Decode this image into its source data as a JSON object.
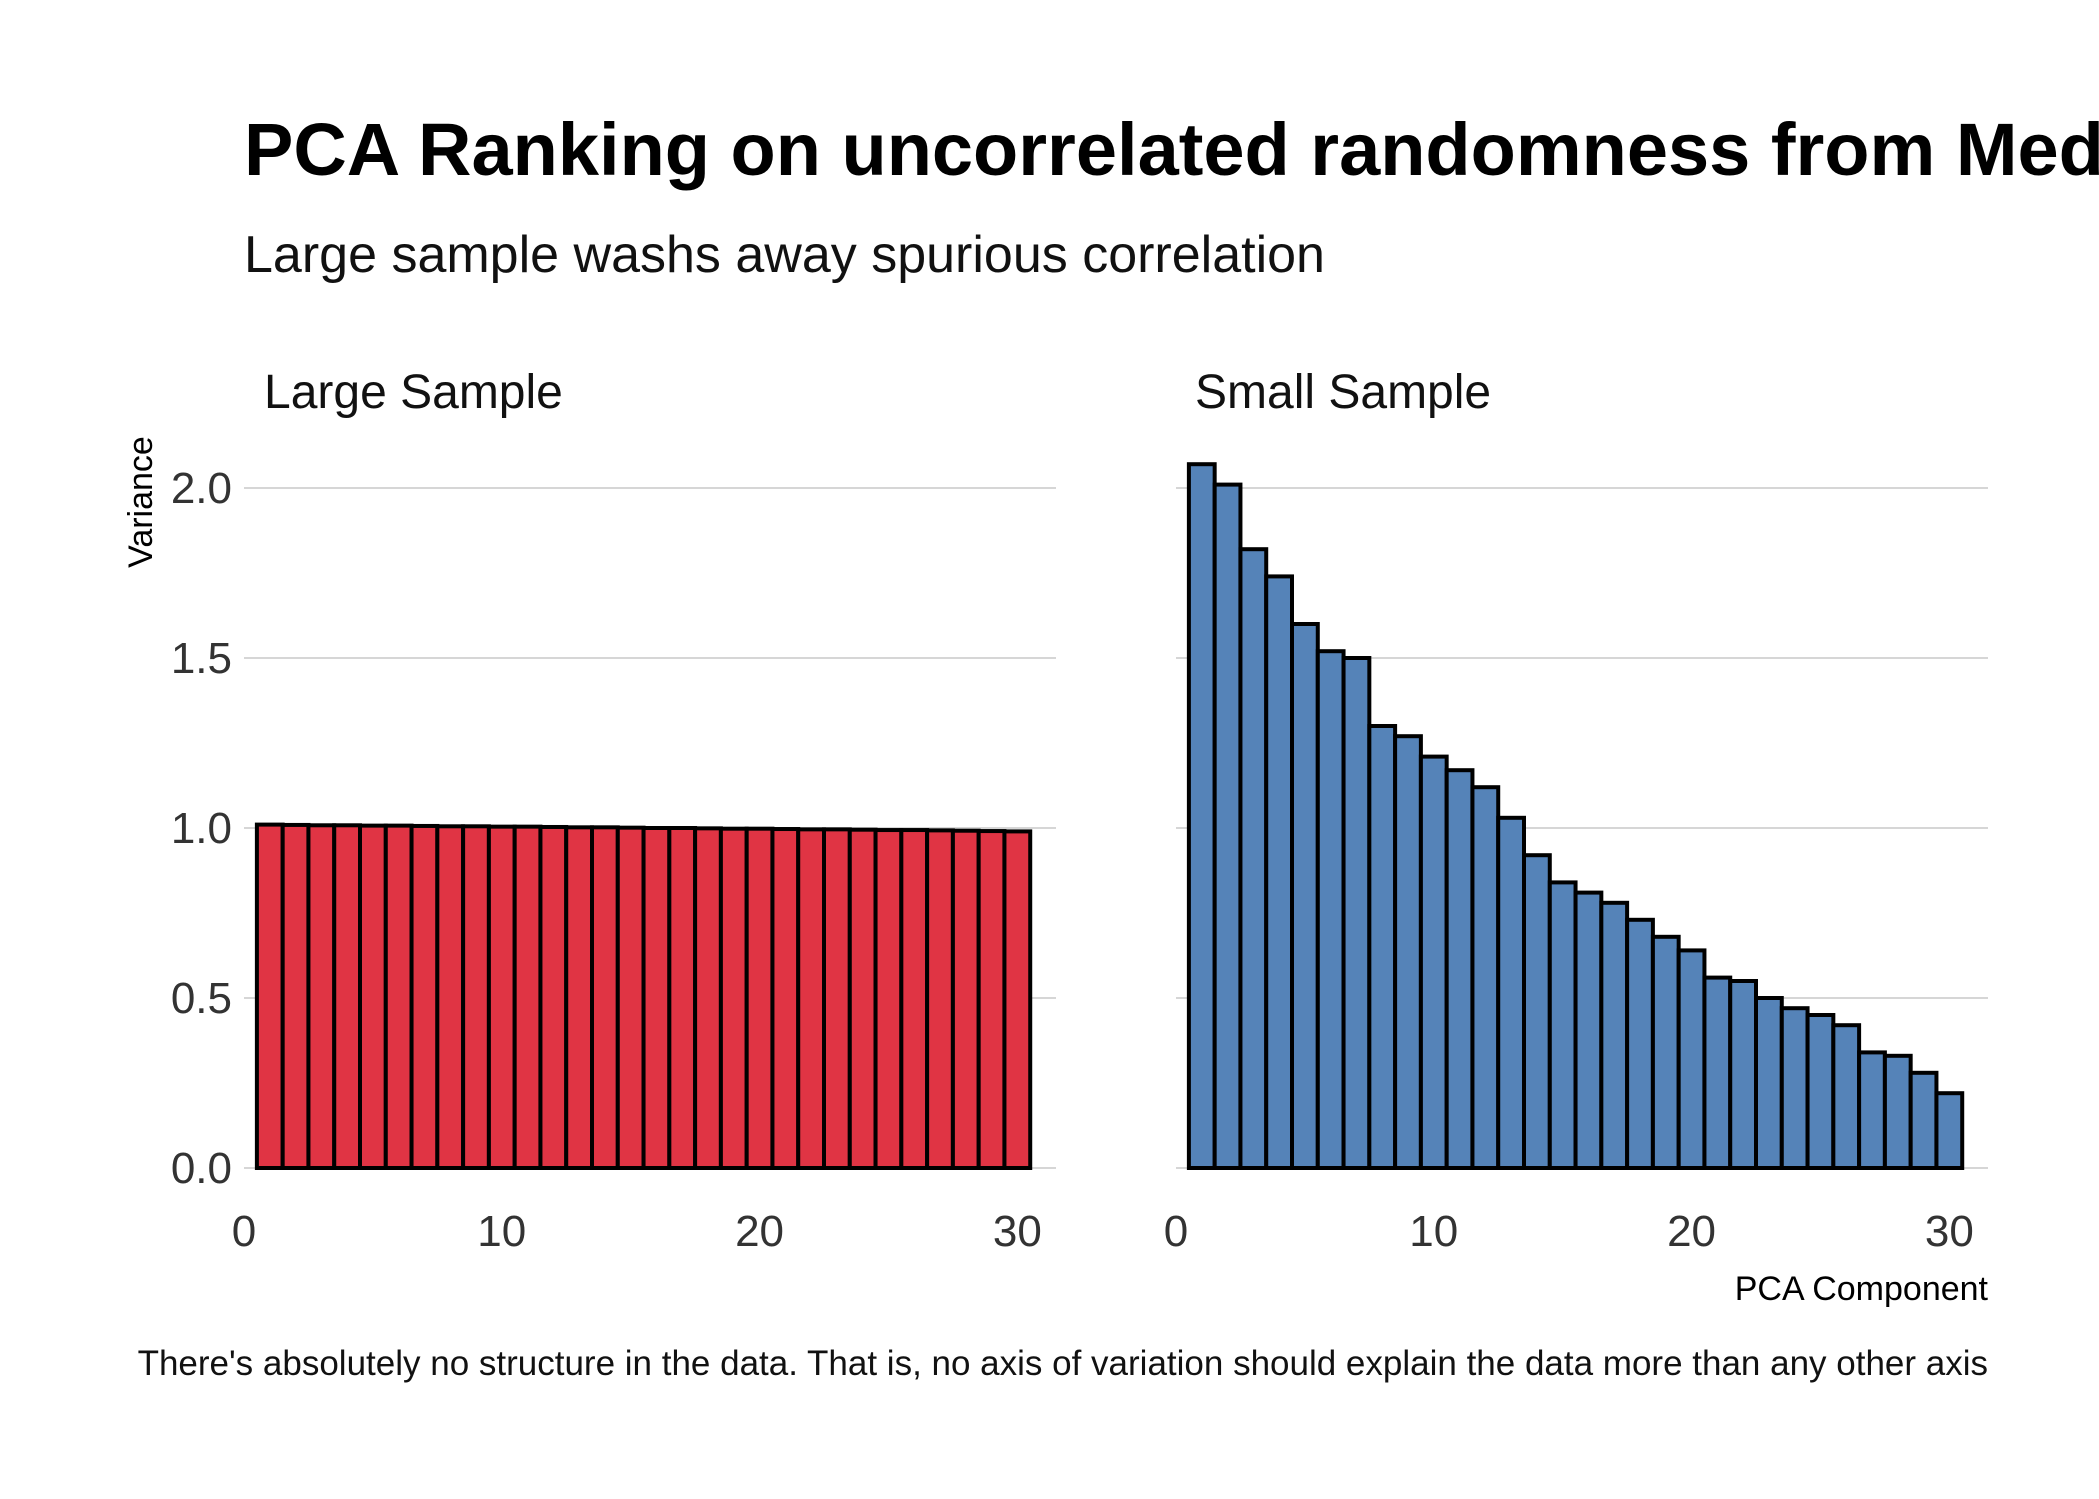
{
  "chart_data": {
    "type": "bar",
    "title": "PCA Ranking on uncorrelated randomness from Mediocristan",
    "subtitle": "Large sample washs away spurious correlation",
    "caption": "There's absolutely no structure in the data. That is, no axis of variation should explain the data more than any other axis",
    "xlabel": "PCA Component",
    "ylabel": "Variance",
    "ylim": [
      0,
      2.2
    ],
    "xlim": [
      0,
      31.5
    ],
    "y_ticks": [
      "0.0",
      "0.5",
      "1.0",
      "1.5",
      "2.0"
    ],
    "y_tick_values": [
      0,
      0.5,
      1.0,
      1.5,
      2.0
    ],
    "x_ticks": [
      "0",
      "10",
      "20",
      "30"
    ],
    "x_tick_values": [
      0,
      10,
      20,
      30
    ],
    "grid": "horizontal",
    "panels": [
      {
        "name": "Large Sample",
        "color": "#e03444",
        "x": [
          1,
          2,
          3,
          4,
          5,
          6,
          7,
          8,
          9,
          10,
          11,
          12,
          13,
          14,
          15,
          16,
          17,
          18,
          19,
          20,
          21,
          22,
          23,
          24,
          25,
          26,
          27,
          28,
          29,
          30
        ],
        "values": [
          1.01,
          1.009,
          1.008,
          1.008,
          1.007,
          1.007,
          1.006,
          1.005,
          1.005,
          1.004,
          1.004,
          1.003,
          1.002,
          1.002,
          1.001,
          1.0,
          1.0,
          0.999,
          0.998,
          0.998,
          0.997,
          0.996,
          0.996,
          0.995,
          0.994,
          0.994,
          0.993,
          0.992,
          0.991,
          0.99
        ]
      },
      {
        "name": "Small Sample",
        "color": "#5583b8",
        "x": [
          1,
          2,
          3,
          4,
          5,
          6,
          7,
          8,
          9,
          10,
          11,
          12,
          13,
          14,
          15,
          16,
          17,
          18,
          19,
          20,
          21,
          22,
          23,
          24,
          25,
          26,
          27,
          28,
          29,
          30
        ],
        "values": [
          2.07,
          2.01,
          1.82,
          1.74,
          1.6,
          1.52,
          1.5,
          1.3,
          1.27,
          1.21,
          1.17,
          1.12,
          1.03,
          0.92,
          0.84,
          0.81,
          0.78,
          0.73,
          0.68,
          0.64,
          0.56,
          0.55,
          0.5,
          0.47,
          0.45,
          0.42,
          0.34,
          0.33,
          0.28,
          0.22
        ]
      }
    ]
  }
}
